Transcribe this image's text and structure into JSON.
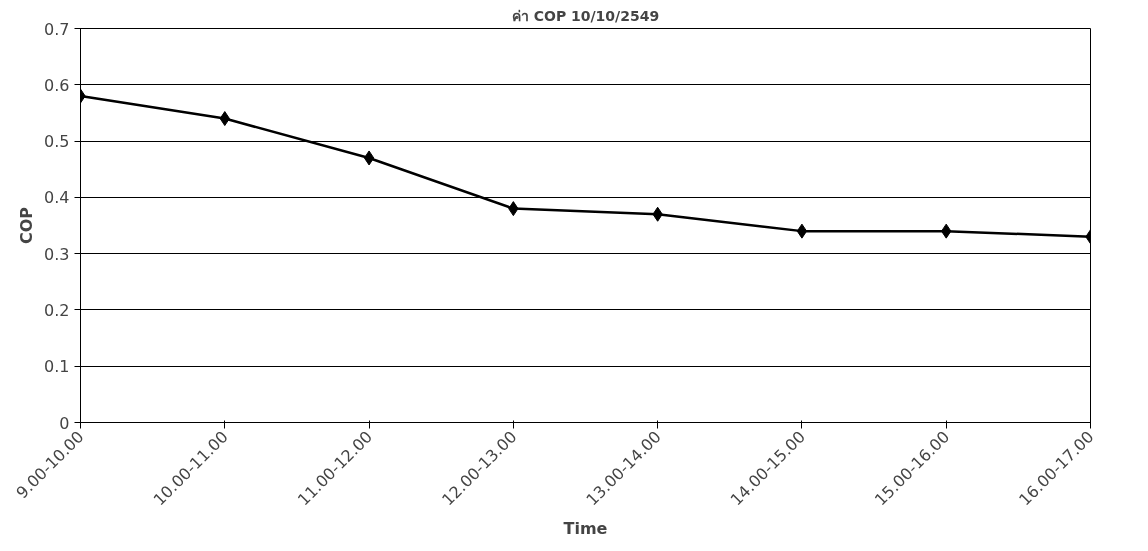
{
  "chart_data": {
    "type": "line",
    "title": "ค่า COP 10/10/2549",
    "xlabel": "Time",
    "ylabel": "COP",
    "categories": [
      "9.00-10.00",
      "10.00-11.00",
      "11.00-12.00",
      "12.00-13.00",
      "13.00-14.00",
      "14.00-15.00",
      "15.00-16.00",
      "16.00-17.00"
    ],
    "series": [
      {
        "color": "#000000",
        "values": [
          0.58,
          0.54,
          0.47,
          0.38,
          0.37,
          0.34,
          0.34,
          0.33
        ]
      }
    ],
    "ylim": [
      0,
      0.7
    ],
    "yticks": [
      0,
      0.1,
      0.2,
      0.3,
      0.4,
      0.5,
      0.6,
      0.7
    ],
    "grid": "y",
    "marker": "diamond",
    "line_style": "solid"
  }
}
